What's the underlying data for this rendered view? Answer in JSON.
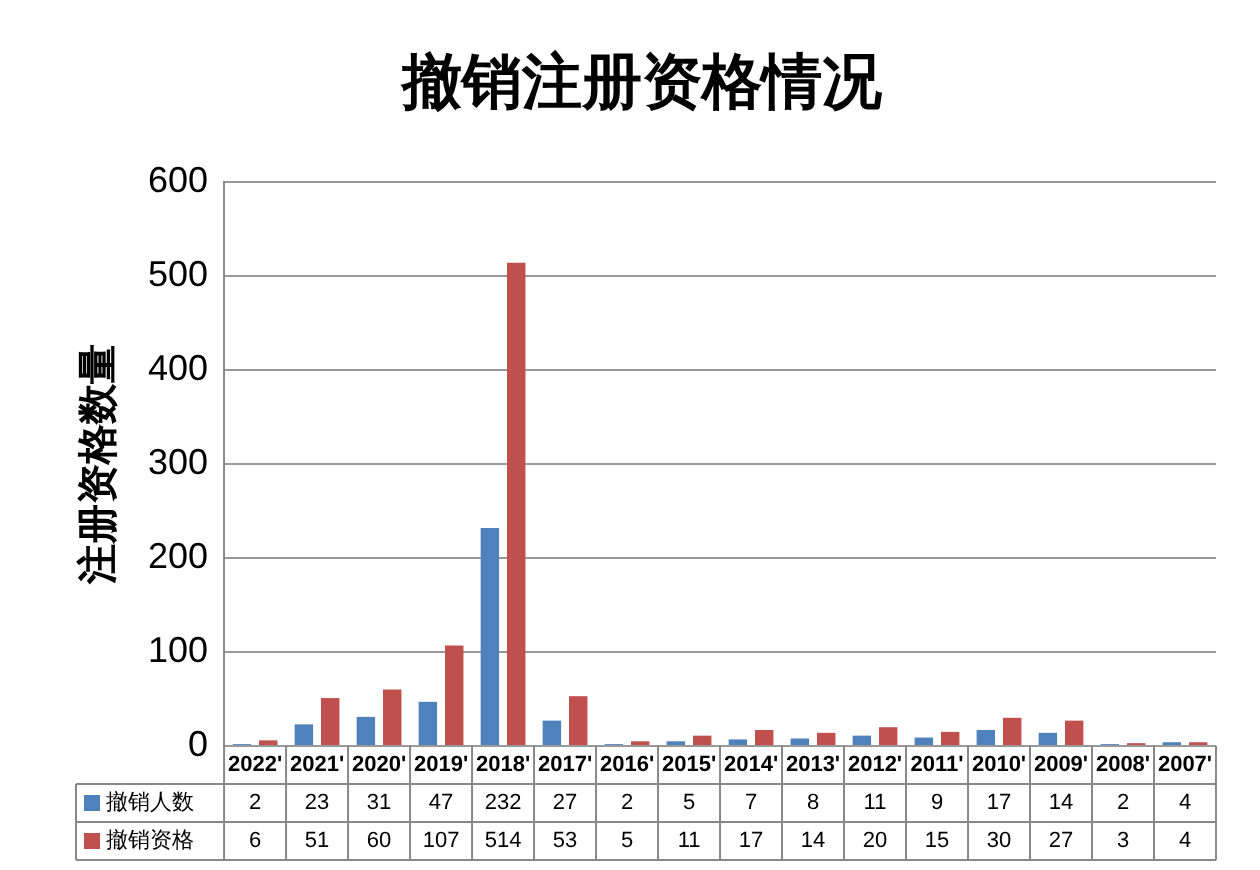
{
  "chart_data": {
    "type": "bar",
    "title": "撤销注册资格情况",
    "ylabel": "注册资格数量",
    "categories": [
      "2022'",
      "2021'",
      "2020'",
      "2019'",
      "2018'",
      "2017'",
      "2016'",
      "2015'",
      "2014'",
      "2013'",
      "2012'",
      "2011'",
      "2010'",
      "2009'",
      "2008'",
      "2007'"
    ],
    "series": [
      {
        "name": "撤销人数",
        "color": "#4f81bd",
        "values": [
          2,
          23,
          31,
          47,
          232,
          27,
          2,
          5,
          7,
          8,
          11,
          9,
          17,
          14,
          2,
          4
        ]
      },
      {
        "name": "撤销资格",
        "color": "#c0504d",
        "values": [
          6,
          51,
          60,
          107,
          514,
          53,
          5,
          11,
          17,
          14,
          20,
          15,
          30,
          27,
          3,
          4
        ]
      }
    ],
    "ylim": [
      0,
      600
    ],
    "yticks": [
      0,
      100,
      200,
      300,
      400,
      500,
      600
    ],
    "grid": "y",
    "legend": "bottom",
    "data_labels": true
  }
}
